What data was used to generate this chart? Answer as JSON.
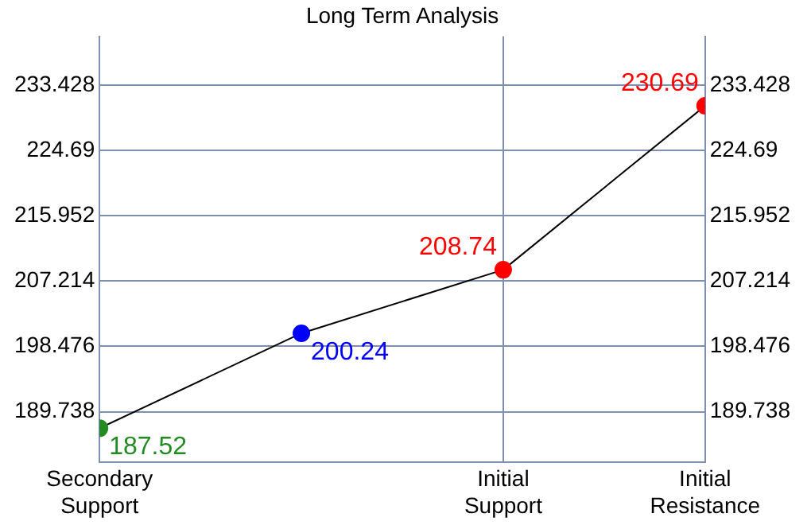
{
  "chart_data": {
    "type": "line",
    "title": "Long Term Analysis",
    "categories": [
      "Secondary\nSupport",
      null,
      "Initial\nSupport",
      "Initial\nResistance"
    ],
    "series": [
      {
        "color": "#000000",
        "colors": [
          "#228b22",
          "#0000ff",
          "#ff0000",
          "#ff0000"
        ],
        "values": [
          187.52,
          200.24,
          208.74,
          230.69
        ]
      }
    ],
    "ylim": [
      183,
      240
    ],
    "yticks": [
      189.738,
      198.476,
      207.214,
      215.952,
      224.69,
      233.428
    ],
    "y2lim": [
      183,
      240
    ],
    "y2ticks": [
      189.738,
      198.476,
      207.214,
      215.952,
      224.69,
      233.428
    ],
    "grid": true,
    "legend": false,
    "marker": "circle",
    "line_style": "solid",
    "data_labels": true
  }
}
